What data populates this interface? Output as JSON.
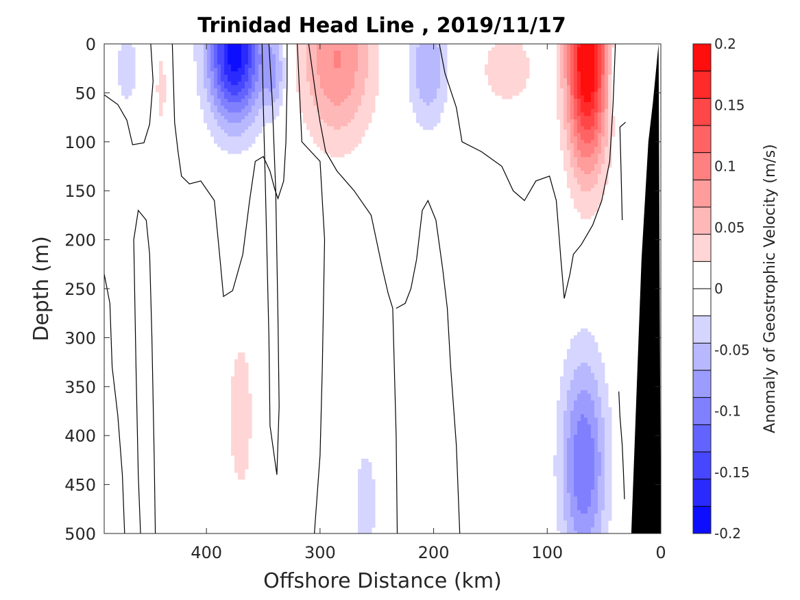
{
  "chart_data": {
    "type": "heatmap",
    "title": "Trinidad Head Line , 2019/11/17",
    "xlabel": "Offshore Distance (km)",
    "ylabel": "Depth (m)",
    "xlim": [
      490,
      0
    ],
    "ylim": [
      0,
      500
    ],
    "x_reversed": true,
    "y_reversed": true,
    "x_ticks": [
      400,
      300,
      200,
      100,
      0
    ],
    "y_ticks": [
      0,
      50,
      100,
      150,
      200,
      250,
      300,
      350,
      400,
      450,
      500
    ],
    "colorbar": {
      "label": "Anomaly of Geostrophic Velocity (m/s)",
      "range": [
        -0.2,
        0.2
      ],
      "levels": 18,
      "tick_values": [
        0.2,
        0.15,
        0.1,
        0.05,
        0,
        -0.05,
        -0.1,
        -0.15,
        -0.2
      ],
      "tick_labels": [
        "0.2",
        "0.15",
        "0.1",
        "0.05",
        "0",
        "-0.05",
        "-0.1",
        "-0.15",
        "-0.2"
      ],
      "min_color": "#0000ff",
      "max_color": "#ff0000"
    },
    "grid": false,
    "bathymetry_color": "#000000",
    "zero_contours": [
      [
        [
          490,
          52
        ],
        [
          478,
          62
        ],
        [
          470,
          78
        ],
        [
          465,
          103
        ],
        [
          455,
          101
        ],
        [
          450,
          82
        ],
        [
          447,
          38
        ],
        [
          449,
          0
        ]
      ],
      [
        [
          430,
          0
        ],
        [
          428,
          80
        ],
        [
          425,
          110
        ],
        [
          422,
          135
        ],
        [
          415,
          143
        ],
        [
          405,
          140
        ],
        [
          393,
          160
        ],
        [
          388,
          220
        ],
        [
          385,
          258
        ],
        [
          377,
          252
        ],
        [
          368,
          215
        ],
        [
          362,
          160
        ],
        [
          357,
          120
        ],
        [
          350,
          115
        ],
        [
          344,
          130
        ],
        [
          340,
          148
        ],
        [
          337,
          158
        ],
        [
          332,
          140
        ],
        [
          330,
          100
        ],
        [
          329,
          40
        ],
        [
          329,
          0
        ]
      ],
      [
        [
          490,
          235
        ],
        [
          485,
          265
        ],
        [
          483,
          330
        ],
        [
          478,
          380
        ],
        [
          474,
          440
        ],
        [
          472,
          500
        ]
      ],
      [
        [
          458,
          500
        ],
        [
          460,
          440
        ],
        [
          462,
          330
        ],
        [
          464,
          200
        ],
        [
          460,
          170
        ],
        [
          453,
          180
        ],
        [
          450,
          215
        ],
        [
          448,
          300
        ],
        [
          446,
          420
        ],
        [
          445,
          500
        ]
      ],
      [
        [
          345,
          0
        ],
        [
          342,
          60
        ],
        [
          339,
          150
        ],
        [
          337,
          280
        ],
        [
          336,
          370
        ],
        [
          338,
          440
        ],
        [
          344,
          390
        ],
        [
          345,
          300
        ],
        [
          348,
          150
        ],
        [
          350,
          60
        ],
        [
          351,
          0
        ]
      ],
      [
        [
          320,
          0
        ],
        [
          318,
          50
        ],
        [
          316,
          100
        ],
        [
          300,
          120
        ],
        [
          296,
          200
        ],
        [
          298,
          330
        ],
        [
          300,
          420
        ],
        [
          305,
          500
        ]
      ],
      [
        [
          310,
          0
        ],
        [
          304,
          50
        ],
        [
          300,
          80
        ],
        [
          295,
          110
        ],
        [
          285,
          130
        ],
        [
          270,
          150
        ],
        [
          255,
          175
        ],
        [
          245,
          230
        ],
        [
          240,
          255
        ],
        [
          236,
          270
        ],
        [
          233,
          400
        ],
        [
          232,
          500
        ]
      ],
      [
        [
          233,
          270
        ],
        [
          225,
          265
        ],
        [
          220,
          250
        ],
        [
          215,
          220
        ],
        [
          210,
          170
        ],
        [
          205,
          160
        ],
        [
          198,
          180
        ],
        [
          192,
          230
        ],
        [
          188,
          270
        ],
        [
          185,
          330
        ],
        [
          180,
          410
        ],
        [
          177,
          500
        ]
      ],
      [
        [
          195,
          0
        ],
        [
          190,
          30
        ],
        [
          180,
          65
        ],
        [
          175,
          100
        ],
        [
          158,
          110
        ],
        [
          140,
          125
        ],
        [
          130,
          150
        ],
        [
          120,
          160
        ],
        [
          110,
          140
        ],
        [
          98,
          135
        ],
        [
          92,
          160
        ],
        [
          88,
          220
        ],
        [
          85,
          260
        ],
        [
          80,
          235
        ],
        [
          77,
          215
        ],
        [
          70,
          205
        ],
        [
          60,
          185
        ],
        [
          52,
          160
        ],
        [
          45,
          120
        ],
        [
          42,
          60
        ],
        [
          40,
          0
        ]
      ],
      [
        [
          31,
          80
        ],
        [
          36,
          85
        ],
        [
          35,
          130
        ],
        [
          34,
          180
        ]
      ],
      [
        [
          37,
          355
        ],
        [
          36,
          380
        ],
        [
          34,
          410
        ],
        [
          33,
          435
        ],
        [
          32,
          465
        ]
      ]
    ]
  }
}
